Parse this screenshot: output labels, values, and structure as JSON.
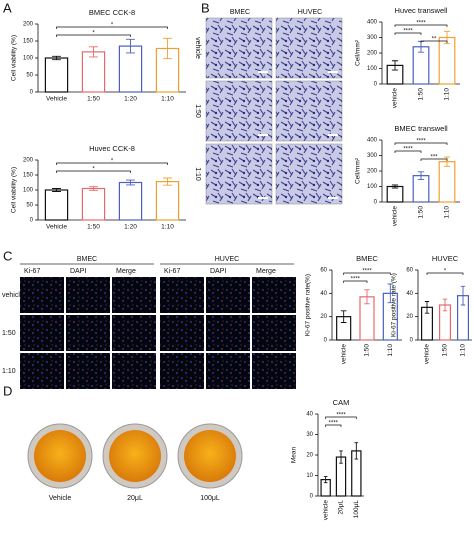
{
  "panel_labels": [
    "A",
    "B",
    "C",
    "D"
  ],
  "panel_b": {
    "columns": [
      "BMEC",
      "HUVEC"
    ],
    "rows": [
      "vehicle",
      "1:50",
      "1:10"
    ]
  },
  "panel_c": {
    "groups": [
      {
        "name": "BMEC",
        "columns": [
          "Ki-67",
          "DAPI",
          "Merge"
        ]
      },
      {
        "name": "HUVEC",
        "columns": [
          "Ki-67",
          "DAPI",
          "Merge"
        ]
      }
    ],
    "rows": [
      "vehicle",
      "1:50",
      "1:10"
    ]
  },
  "panel_d": {
    "labels": [
      "Vehicle",
      "20μL",
      "100μL"
    ]
  },
  "chart_data": [
    {
      "type": "bar",
      "title": "BMEC CCK-8",
      "ylabel": "Cell viability (%)",
      "categories": [
        "Vehicle",
        "1:50",
        "1:20",
        "1:10"
      ],
      "values": [
        100,
        118,
        135,
        128
      ],
      "errors": [
        5,
        15,
        20,
        30
      ],
      "colors": [
        "#111111",
        "#e8676a",
        "#4a5fc1",
        "#f0a030"
      ],
      "ylim": [
        0,
        200
      ],
      "yticks": [
        0,
        50,
        100,
        150,
        200
      ],
      "significance": [
        {
          "from": 0,
          "to": 3,
          "label": "*"
        },
        {
          "from": 0,
          "to": 2,
          "label": "*"
        }
      ]
    },
    {
      "type": "bar",
      "title": "Huvec CCK-8",
      "ylabel": "Cell viability (%)",
      "categories": [
        "Vehicle",
        "1:50",
        "1:20",
        "1:10"
      ],
      "values": [
        100,
        105,
        125,
        128
      ],
      "errors": [
        5,
        6,
        8,
        12
      ],
      "colors": [
        "#111111",
        "#e8676a",
        "#4a5fc1",
        "#f0a030"
      ],
      "ylim": [
        0,
        200
      ],
      "yticks": [
        0,
        50,
        100,
        150,
        200
      ],
      "significance": [
        {
          "from": 0,
          "to": 3,
          "label": "*"
        },
        {
          "from": 0,
          "to": 2,
          "label": "*"
        }
      ]
    },
    {
      "type": "bar",
      "title": "Huvec transwell",
      "ylabel": "Cell/mm²",
      "categories": [
        "vehicle",
        "1:50",
        "1:10"
      ],
      "values": [
        120,
        240,
        300
      ],
      "errors": [
        30,
        35,
        40
      ],
      "colors": [
        "#111111",
        "#4a5fc1",
        "#f0a030"
      ],
      "ylim": [
        0,
        400
      ],
      "yticks": [
        0,
        100,
        200,
        300,
        400
      ],
      "significance": [
        {
          "from": 0,
          "to": 2,
          "label": "****"
        },
        {
          "from": 0,
          "to": 1,
          "label": "****"
        },
        {
          "from": 1,
          "to": 2,
          "label": "**"
        }
      ]
    },
    {
      "type": "bar",
      "title": "BMEC transwell",
      "ylabel": "Cell/mm²",
      "categories": [
        "vehicle",
        "1:50",
        "1:10"
      ],
      "values": [
        100,
        170,
        260
      ],
      "errors": [
        10,
        25,
        30
      ],
      "colors": [
        "#111111",
        "#4a5fc1",
        "#f0a030"
      ],
      "ylim": [
        0,
        400
      ],
      "yticks": [
        0,
        100,
        200,
        300,
        400
      ],
      "significance": [
        {
          "from": 0,
          "to": 2,
          "label": "****"
        },
        {
          "from": 0,
          "to": 1,
          "label": "****"
        },
        {
          "from": 1,
          "to": 2,
          "label": "***"
        }
      ]
    },
    {
      "type": "bar",
      "title": "BMEC",
      "ylabel": "Ki-67 positive rate(%)",
      "categories": [
        "vehicle",
        "1:50",
        "1:10"
      ],
      "values": [
        20,
        37,
        40
      ],
      "errors": [
        5,
        6,
        8
      ],
      "colors": [
        "#111111",
        "#e8676a",
        "#4a5fc1"
      ],
      "ylim": [
        0,
        60
      ],
      "yticks": [
        0,
        20,
        40,
        60
      ],
      "significance": [
        {
          "from": 0,
          "to": 2,
          "label": "****"
        },
        {
          "from": 0,
          "to": 1,
          "label": "****"
        }
      ]
    },
    {
      "type": "bar",
      "title": "HUVEC",
      "ylabel": "Ki-67 positive rate (%)",
      "categories": [
        "vehicle",
        "1:50",
        "1:10"
      ],
      "values": [
        28,
        30,
        38
      ],
      "errors": [
        5,
        5,
        8
      ],
      "colors": [
        "#111111",
        "#e8676a",
        "#4a5fc1"
      ],
      "ylim": [
        0,
        60
      ],
      "yticks": [
        0,
        20,
        40,
        60
      ],
      "significance": [
        {
          "from": 0,
          "to": 2,
          "label": "*"
        }
      ]
    },
    {
      "type": "bar",
      "title": "CAM",
      "ylabel": "Mean",
      "categories": [
        "vehicle",
        "20μL",
        "100μL"
      ],
      "values": [
        8,
        19,
        22
      ],
      "errors": [
        1.5,
        3,
        4
      ],
      "colors": [
        "#111111",
        "#111111",
        "#111111"
      ],
      "ylim": [
        0,
        40
      ],
      "yticks": [
        0,
        10,
        20,
        30,
        40
      ],
      "significance": [
        {
          "from": 0,
          "to": 2,
          "label": "****"
        },
        {
          "from": 0,
          "to": 1,
          "label": "****"
        }
      ]
    }
  ]
}
